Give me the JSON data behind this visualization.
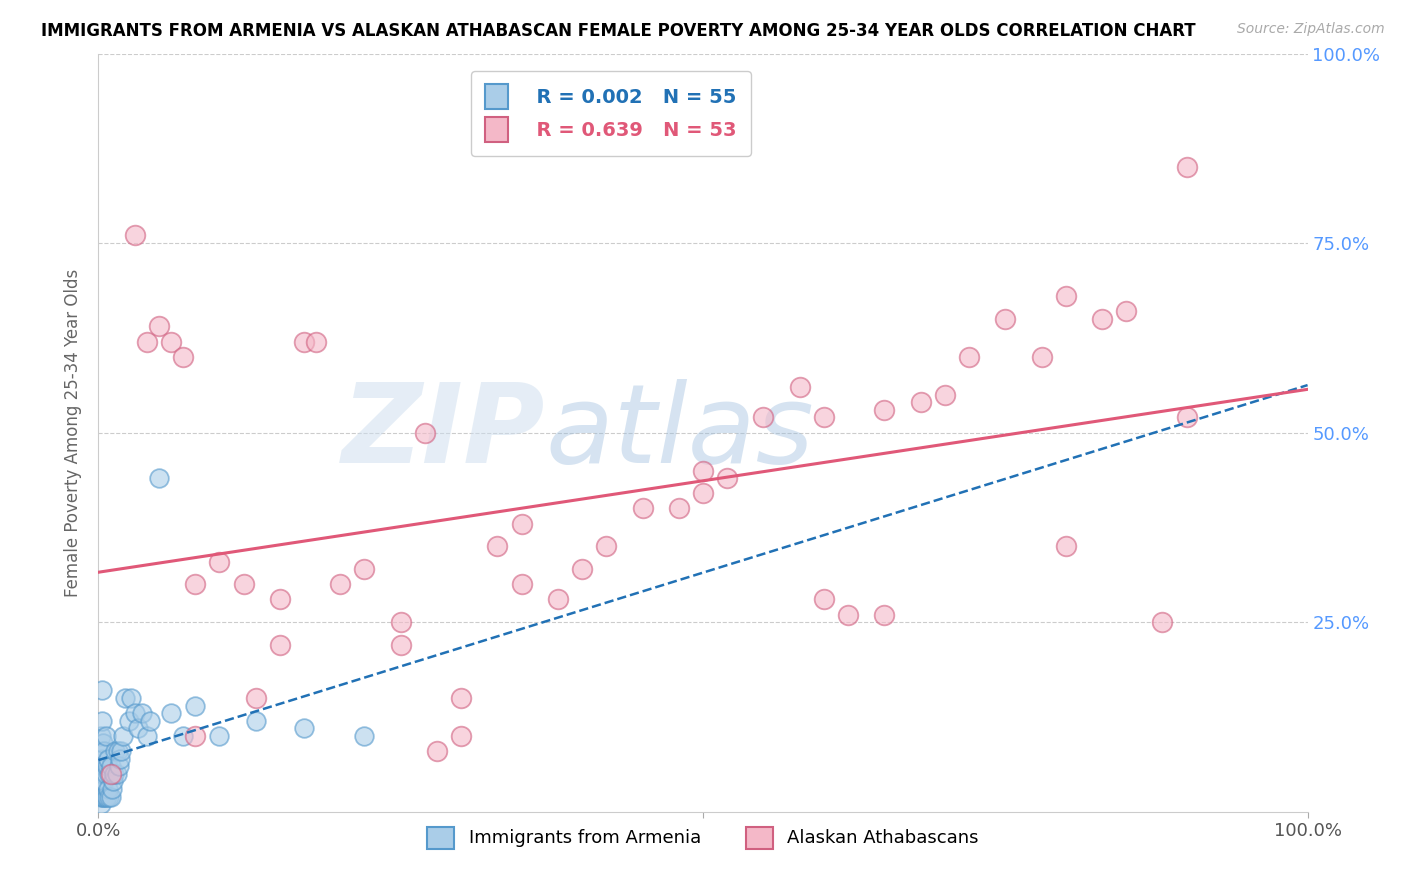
{
  "title": "IMMIGRANTS FROM ARMENIA VS ALASKAN ATHABASCAN FEMALE POVERTY AMONG 25-34 YEAR OLDS CORRELATION CHART",
  "source": "Source: ZipAtlas.com",
  "ylabel": "Female Poverty Among 25-34 Year Olds",
  "legend_blue_R": "0.002",
  "legend_blue_N": "55",
  "legend_pink_R": "0.639",
  "legend_pink_N": "53",
  "legend_blue_label": "Immigrants from Armenia",
  "legend_pink_label": "Alaskan Athabascans",
  "blue_color": "#aacde8",
  "pink_color": "#f4b8c8",
  "blue_line_color": "#2171b5",
  "pink_line_color": "#e05878",
  "blue_edge_color": "#5599cc",
  "pink_edge_color": "#d06080",
  "watermark_color": "#b8d4ee",
  "bg_color": "#ffffff",
  "grid_color": "#cccccc",
  "axis_label_color": "#666666",
  "right_tick_color": "#5599ff",
  "blue_x": [
    0.001,
    0.001,
    0.001,
    0.002,
    0.002,
    0.002,
    0.002,
    0.003,
    0.003,
    0.003,
    0.003,
    0.003,
    0.004,
    0.004,
    0.004,
    0.005,
    0.005,
    0.005,
    0.006,
    0.006,
    0.006,
    0.007,
    0.007,
    0.008,
    0.008,
    0.009,
    0.009,
    0.01,
    0.01,
    0.011,
    0.012,
    0.013,
    0.014,
    0.015,
    0.016,
    0.017,
    0.018,
    0.019,
    0.02,
    0.022,
    0.025,
    0.027,
    0.03,
    0.033,
    0.036,
    0.04,
    0.043,
    0.05,
    0.06,
    0.07,
    0.08,
    0.1,
    0.13,
    0.17,
    0.22
  ],
  "blue_y": [
    0.02,
    0.05,
    0.08,
    0.01,
    0.03,
    0.06,
    0.1,
    0.02,
    0.04,
    0.07,
    0.12,
    0.16,
    0.02,
    0.05,
    0.09,
    0.02,
    0.04,
    0.08,
    0.02,
    0.05,
    0.1,
    0.02,
    0.06,
    0.03,
    0.07,
    0.02,
    0.05,
    0.02,
    0.06,
    0.03,
    0.04,
    0.05,
    0.08,
    0.05,
    0.08,
    0.06,
    0.07,
    0.08,
    0.1,
    0.15,
    0.12,
    0.15,
    0.13,
    0.11,
    0.13,
    0.1,
    0.12,
    0.44,
    0.13,
    0.1,
    0.14,
    0.1,
    0.12,
    0.11,
    0.1
  ],
  "pink_x": [
    0.01,
    0.03,
    0.04,
    0.05,
    0.06,
    0.07,
    0.08,
    0.1,
    0.12,
    0.13,
    0.15,
    0.17,
    0.18,
    0.2,
    0.22,
    0.25,
    0.27,
    0.28,
    0.3,
    0.33,
    0.35,
    0.38,
    0.4,
    0.42,
    0.45,
    0.48,
    0.5,
    0.52,
    0.55,
    0.58,
    0.6,
    0.62,
    0.65,
    0.68,
    0.7,
    0.72,
    0.75,
    0.78,
    0.8,
    0.83,
    0.85,
    0.88,
    0.9,
    0.35,
    0.25,
    0.5,
    0.65,
    0.8,
    0.08,
    0.15,
    0.3,
    0.6,
    0.9
  ],
  "pink_y": [
    0.05,
    0.76,
    0.62,
    0.64,
    0.62,
    0.6,
    0.3,
    0.33,
    0.3,
    0.15,
    0.28,
    0.62,
    0.62,
    0.3,
    0.32,
    0.22,
    0.5,
    0.08,
    0.1,
    0.35,
    0.38,
    0.28,
    0.32,
    0.35,
    0.4,
    0.4,
    0.42,
    0.44,
    0.52,
    0.56,
    0.52,
    0.26,
    0.53,
    0.54,
    0.55,
    0.6,
    0.65,
    0.6,
    0.35,
    0.65,
    0.66,
    0.25,
    0.52,
    0.3,
    0.25,
    0.45,
    0.26,
    0.68,
    0.1,
    0.22,
    0.15,
    0.28,
    0.85
  ]
}
